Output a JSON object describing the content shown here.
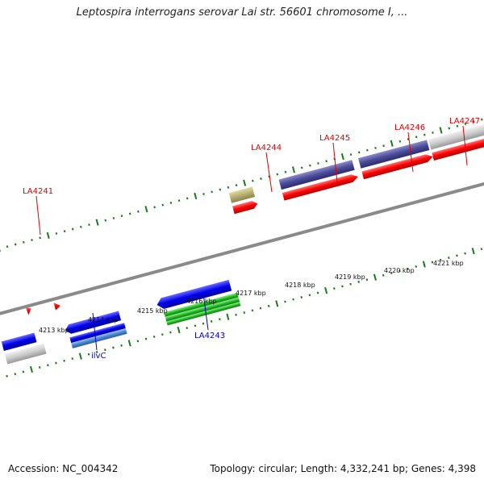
{
  "title": "Leptospira interrogans serovar Lai str. 56601 chromosome I, ...",
  "footer": {
    "accession": "Accession: NC_004342",
    "summary": "Topology: circular; Length: 4,332,241 bp; Genes: 4,398"
  },
  "axis_labels": [
    "4213 kbp",
    "4214 kbp",
    "4215 kbp",
    "4216 kbp",
    "4217 kbp",
    "4218 kbp",
    "4219 kbp",
    "4220 kbp",
    "4221 kbp"
  ],
  "gene_labels": {
    "top": [
      "LA4241",
      "LA4244",
      "LA4245",
      "LA4246",
      "LA4247"
    ],
    "bottom": [
      "ilvC",
      "LA4243"
    ]
  },
  "colors": {
    "forward_label": "#dd0000",
    "reverse_label": "#0000cc",
    "tick": "#1a7a1a",
    "backbone": "#888888"
  }
}
